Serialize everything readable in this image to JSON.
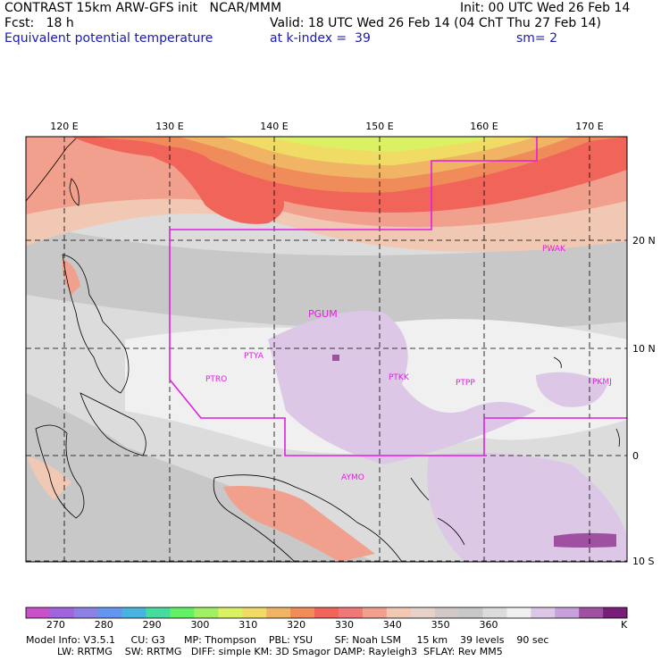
{
  "header": {
    "title": "CONTRAST 15km ARW-GFS init   NCAR/MMM",
    "init": "Init: 00 UTC Wed 26 Feb 14",
    "fcst": "Fcst:   18 h",
    "valid": "Valid: 18 UTC Wed 26 Feb 14 (04 ChT Thu 27 Feb 14)",
    "field": "Equivalent potential temperature",
    "level": "at k-index =  39",
    "smooth": "sm= 2"
  },
  "axes": {
    "lon_labels": [
      "120 E",
      "130 E",
      "140 E",
      "150 E",
      "160 E",
      "170 E"
    ],
    "lat_labels": [
      "20 N",
      "10 N",
      "0",
      "10 S"
    ]
  },
  "stations": [
    "PWAK",
    "PGUM",
    "PTYA",
    "PTRO",
    "PTKK",
    "PTPP",
    "PKMJ",
    "AYMO"
  ],
  "colorbar": {
    "labels": [
      "270",
      "280",
      "290",
      "300",
      "310",
      "320",
      "330",
      "340",
      "350",
      "360"
    ],
    "unit": "K",
    "colors": [
      "#c850c8",
      "#a064dc",
      "#8c82e6",
      "#6496f0",
      "#46b4dc",
      "#46dca0",
      "#64f064",
      "#a0f064",
      "#dcf064",
      "#f0dc64",
      "#f0b464",
      "#f08c5a",
      "#f0645a",
      "#f07878",
      "#f0a08c",
      "#f0c8b4",
      "#e6d2c8",
      "#d2c8c8",
      "#c8c8c8",
      "#dcdcdc",
      "#f0f0f0",
      "#dcc8e6",
      "#c8a0dc",
      "#a050a0",
      "#781e78"
    ]
  },
  "model_info": {
    "line1": "Model Info: V3.5.1     CU: G3      MP: Thompson    PBL: YSU       SF: Noah LSM     15 km    39 levels    90 sec",
    "line2": "          LW: RRTMG    SW: RRTMG   DIFF: simple KM: 3D Smagor DAMP: Rayleigh3  SFLAY: Rev MM5"
  }
}
